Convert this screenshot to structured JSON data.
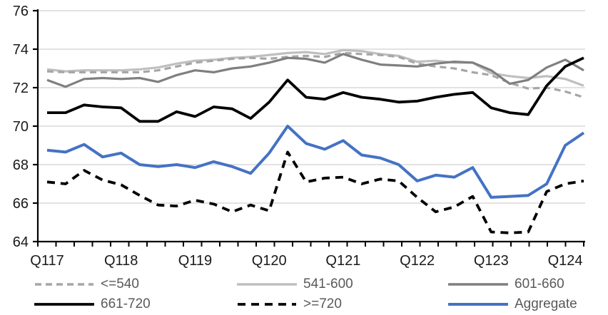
{
  "chart_data": {
    "type": "line",
    "title": "",
    "xlabel": "",
    "ylabel": "",
    "x_tick_labels": [
      "Q117",
      "Q118",
      "Q119",
      "Q120",
      "Q121",
      "Q122",
      "Q123",
      "Q124"
    ],
    "x_label_every": 4,
    "n_points": 30,
    "ylim": [
      64,
      76
    ],
    "y_tick_step": 2,
    "y_tick_labels": [
      "64",
      "66",
      "68",
      "70",
      "72",
      "74",
      "76"
    ],
    "grid": true,
    "legend_position": "bottom",
    "colors": {
      "grid": "#d9d9d9",
      "axis": "#000000",
      "axis_text": "#1a1a1a",
      "legend_text": "#595959"
    },
    "series": [
      {
        "name": "<=540",
        "color": "#a6a6a6",
        "dash": "9 6",
        "width": 3.2,
        "values": [
          72.85,
          72.8,
          72.8,
          72.8,
          72.8,
          72.8,
          72.9,
          73.1,
          73.3,
          73.4,
          73.5,
          73.55,
          73.5,
          73.6,
          73.65,
          73.6,
          73.8,
          73.75,
          73.7,
          73.6,
          73.25,
          73.1,
          73.0,
          72.8,
          72.65,
          72.25,
          71.95,
          72.0,
          71.8,
          71.5
        ]
      },
      {
        "name": "541-600",
        "color": "#bfbfbf",
        "dash": "",
        "width": 3.2,
        "values": [
          72.95,
          72.85,
          72.9,
          72.9,
          72.9,
          72.95,
          73.05,
          73.25,
          73.4,
          73.45,
          73.55,
          73.6,
          73.7,
          73.8,
          73.85,
          73.75,
          73.95,
          73.9,
          73.75,
          73.65,
          73.35,
          73.4,
          73.3,
          73.3,
          72.75,
          72.6,
          72.5,
          72.6,
          72.45,
          72.1
        ]
      },
      {
        "name": "601-660",
        "color": "#7f7f7f",
        "dash": "",
        "width": 3.2,
        "values": [
          72.4,
          72.05,
          72.45,
          72.5,
          72.45,
          72.5,
          72.3,
          72.65,
          72.9,
          72.8,
          73.0,
          73.1,
          73.3,
          73.55,
          73.5,
          73.3,
          73.75,
          73.45,
          73.2,
          73.15,
          73.1,
          73.25,
          73.35,
          73.3,
          72.9,
          72.2,
          72.4,
          73.05,
          73.45,
          72.9
        ]
      },
      {
        "name": "661-720",
        "color": "#000000",
        "dash": "",
        "width": 3.8,
        "values": [
          70.7,
          70.7,
          71.1,
          71.0,
          70.95,
          70.25,
          70.25,
          70.75,
          70.5,
          71.0,
          70.9,
          70.4,
          71.25,
          72.4,
          71.5,
          71.4,
          71.75,
          71.5,
          71.4,
          71.25,
          71.3,
          71.5,
          71.65,
          71.75,
          70.95,
          70.7,
          70.6,
          72.1,
          73.1,
          73.55
        ]
      },
      {
        "name": ">=720",
        "color": "#000000",
        "dash": "11 8",
        "width": 3.8,
        "values": [
          67.1,
          67.0,
          67.7,
          67.2,
          66.95,
          66.4,
          65.9,
          65.85,
          66.15,
          65.95,
          65.55,
          65.9,
          65.6,
          68.65,
          67.1,
          67.3,
          67.35,
          67.0,
          67.25,
          67.15,
          66.3,
          65.55,
          65.8,
          66.35,
          64.5,
          64.45,
          64.5,
          66.6,
          67.0,
          67.15
        ]
      },
      {
        "name": "Aggregate",
        "color": "#4472c4",
        "dash": "",
        "width": 4.0,
        "values": [
          68.75,
          68.65,
          69.05,
          68.4,
          68.6,
          68.0,
          67.9,
          68.0,
          67.85,
          68.15,
          67.9,
          67.55,
          68.6,
          70.0,
          69.1,
          68.8,
          69.25,
          68.5,
          68.35,
          68.0,
          67.15,
          67.45,
          67.35,
          67.85,
          66.3,
          66.35,
          66.4,
          67.0,
          69.0,
          69.65
        ]
      }
    ],
    "draw_order": [
      1,
      0,
      2,
      3,
      4,
      5
    ]
  }
}
